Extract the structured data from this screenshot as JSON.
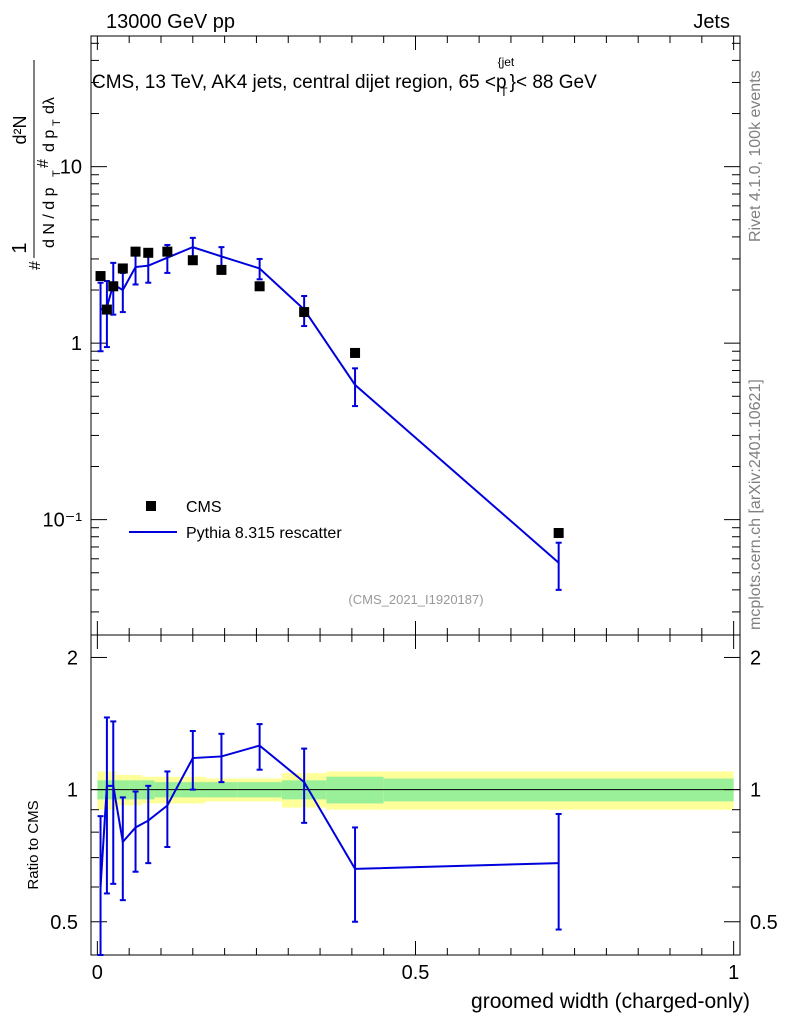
{
  "header": {
    "left": "13000 GeV pp",
    "right": "Jets"
  },
  "plot_title": {
    "pre": "CMS, 13 TeV, AK4 jets, central dijet region, 65 <p",
    "sup": "{jet",
    "sub": "T",
    "post": "}< 88 GeV"
  },
  "side_labels": {
    "top": "Rivet 4.1.0,  100k events",
    "bottom": "mcplots.cern.ch [arXiv:2401.10621]"
  },
  "watermark": "(CMS_2021_I1920187)",
  "legend": {
    "data": "CMS",
    "mc": "Pythia 8.315 rescatter"
  },
  "colors": {
    "mc": "#0000dd",
    "data": "#000000",
    "band_inner": "#99f099",
    "band_outer": "#ffff99"
  },
  "chart_data": [
    {
      "type": "line",
      "role": "main",
      "ylabel": "1/(dN/dp_T) d²N/(dp_T dλ)",
      "yscale": "log",
      "ylim": [
        0.0222,
        55
      ],
      "xlim": [
        -0.01,
        1.01
      ],
      "y_ticks": [
        {
          "v": 10,
          "label": "10"
        },
        {
          "v": 1,
          "label": "1"
        },
        {
          "v": 0.1,
          "label": "10⁻¹"
        }
      ],
      "data_series": {
        "name": "CMS",
        "x": [
          0.005,
          0.015,
          0.025,
          0.04,
          0.06,
          0.08,
          0.11,
          0.15,
          0.195,
          0.255,
          0.325,
          0.405,
          0.725
        ],
        "y": [
          2.4,
          1.55,
          2.1,
          2.65,
          3.3,
          3.25,
          3.3,
          2.95,
          2.6,
          2.1,
          1.5,
          0.88,
          0.084
        ],
        "xerr": [
          0.005,
          0.005,
          0.005,
          0.01,
          0.01,
          0.01,
          0.02,
          0.02,
          0.025,
          0.035,
          0.035,
          0.045,
          0.275
        ]
      },
      "mc_series": {
        "name": "Pythia 8.315 rescatter",
        "x": [
          0.005,
          0.015,
          0.025,
          0.04,
          0.06,
          0.08,
          0.11,
          0.15,
          0.195,
          0.255,
          0.325,
          0.405,
          0.725
        ],
        "y": [
          1.55,
          1.6,
          2.15,
          2.0,
          2.7,
          2.75,
          3.05,
          3.5,
          3.1,
          2.65,
          1.55,
          0.58,
          0.057
        ],
        "yerr": [
          0.65,
          0.65,
          0.7,
          0.5,
          0.55,
          0.55,
          0.55,
          0.45,
          0.4,
          0.35,
          0.3,
          0.14,
          0.017
        ]
      }
    },
    {
      "type": "line",
      "role": "ratio",
      "ylabel": "Ratio to CMS",
      "xlabel": "groomed width (charged-only)",
      "xlim": [
        -0.01,
        1.01
      ],
      "ylim": [
        0.42,
        2.25
      ],
      "y_ticks": [
        {
          "v": 2,
          "label": "2"
        },
        {
          "v": 1,
          "label": "1"
        },
        {
          "v": 0.5,
          "label": "0.5"
        }
      ],
      "x_ticks": [
        {
          "v": 0,
          "label": "0"
        },
        {
          "v": 0.5,
          "label": "0.5"
        },
        {
          "v": 1,
          "label": "1"
        }
      ],
      "ratio": [
        0.6,
        1.02,
        1.02,
        0.76,
        0.82,
        0.85,
        0.92,
        1.18,
        1.19,
        1.26,
        1.04,
        0.66,
        0.68
      ],
      "ratio_err": [
        0.27,
        0.44,
        0.41,
        0.2,
        0.17,
        0.17,
        0.18,
        0.18,
        0.15,
        0.15,
        0.2,
        0.16,
        0.2
      ],
      "band_inner": [
        0.05,
        0.05,
        0.05,
        0.05,
        0.05,
        0.05,
        0.04,
        0.04,
        0.04,
        0.04,
        0.05,
        0.07,
        0.06
      ],
      "band_outer": [
        0.1,
        0.1,
        0.1,
        0.08,
        0.08,
        0.07,
        0.07,
        0.07,
        0.06,
        0.06,
        0.09,
        0.1,
        0.1
      ]
    }
  ]
}
